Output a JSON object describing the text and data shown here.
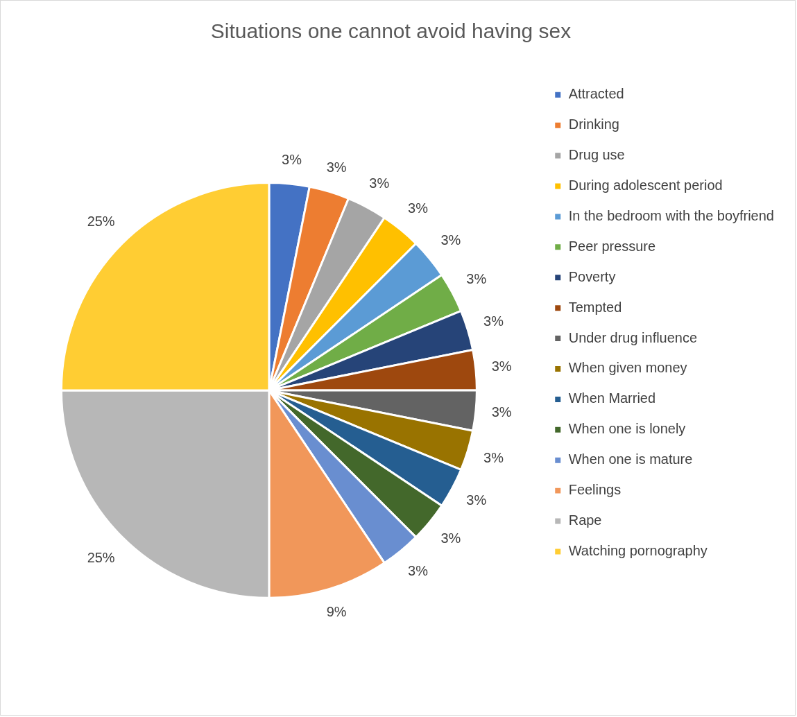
{
  "chart_data": {
    "type": "pie",
    "title": "Situations one cannot avoid having sex",
    "categories": [
      "Attracted",
      "Drinking",
      "Drug use",
      "During adolescent period",
      "In the bedroom with the boyfriend",
      "Peer pressure",
      "Poverty",
      "Tempted",
      "Under drug influence",
      "When given money",
      "When Married",
      "When one is lonely",
      "When one is mature",
      "Feelings",
      "Rape",
      "Watching pornography"
    ],
    "values": [
      3.125,
      3.125,
      3.125,
      3.125,
      3.125,
      3.125,
      3.125,
      3.125,
      3.125,
      3.125,
      3.125,
      3.125,
      3.125,
      9.375,
      25,
      25
    ],
    "value_labels": [
      "3%",
      "3%",
      "3%",
      "3%",
      "3%",
      "3%",
      "3%",
      "3%",
      "3%",
      "3%",
      "3%",
      "3%",
      "3%",
      "9%",
      "25%",
      "25%"
    ],
    "colors": [
      "#4472c4",
      "#ed7d31",
      "#a5a5a5",
      "#ffc000",
      "#5b9bd5",
      "#70ad47",
      "#264478",
      "#9e480e",
      "#636363",
      "#997300",
      "#255e91",
      "#43682b",
      "#698ed0",
      "#f1975a",
      "#b7b7b7",
      "#ffcd33"
    ],
    "legend": "right"
  }
}
